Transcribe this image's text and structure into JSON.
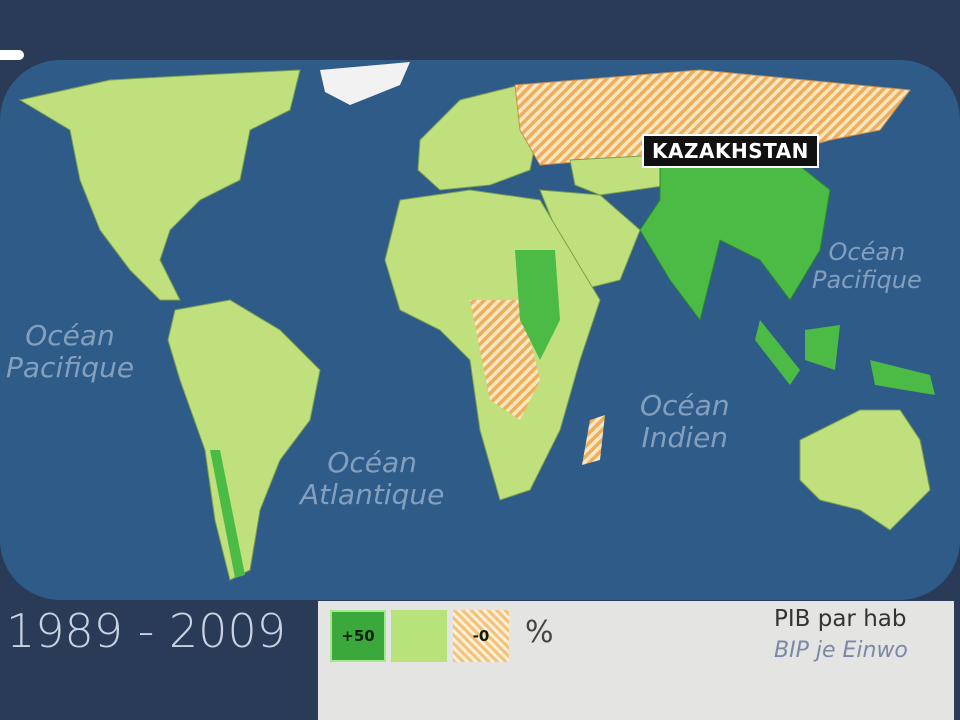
{
  "map": {
    "highlighted_country": "KAZAKHSTAN",
    "ocean_labels": [
      {
        "line1": "Océan",
        "line2": "Pacifique"
      },
      {
        "line1": "Océan",
        "line2": "Atlantique"
      },
      {
        "line1": "Océan",
        "line2": "Indien"
      },
      {
        "line1": "Océan",
        "line2": "Pacifique"
      }
    ],
    "colors": {
      "ocean": "#2f5b88",
      "growth_high": "#4cbb45",
      "growth_mid": "#bfe07c",
      "decline": "#f2c07a",
      "no_data": "#e8e8e8"
    }
  },
  "period": "1989 - 2009",
  "legend": {
    "items": [
      {
        "label": "+50",
        "meaning": "growth_high"
      },
      {
        "label": "",
        "meaning": "growth_mid"
      },
      {
        "label": "-0",
        "meaning": "decline"
      }
    ],
    "unit": "%",
    "title_fr": "PIB par hab",
    "title_de": "BIP je Einwo"
  }
}
